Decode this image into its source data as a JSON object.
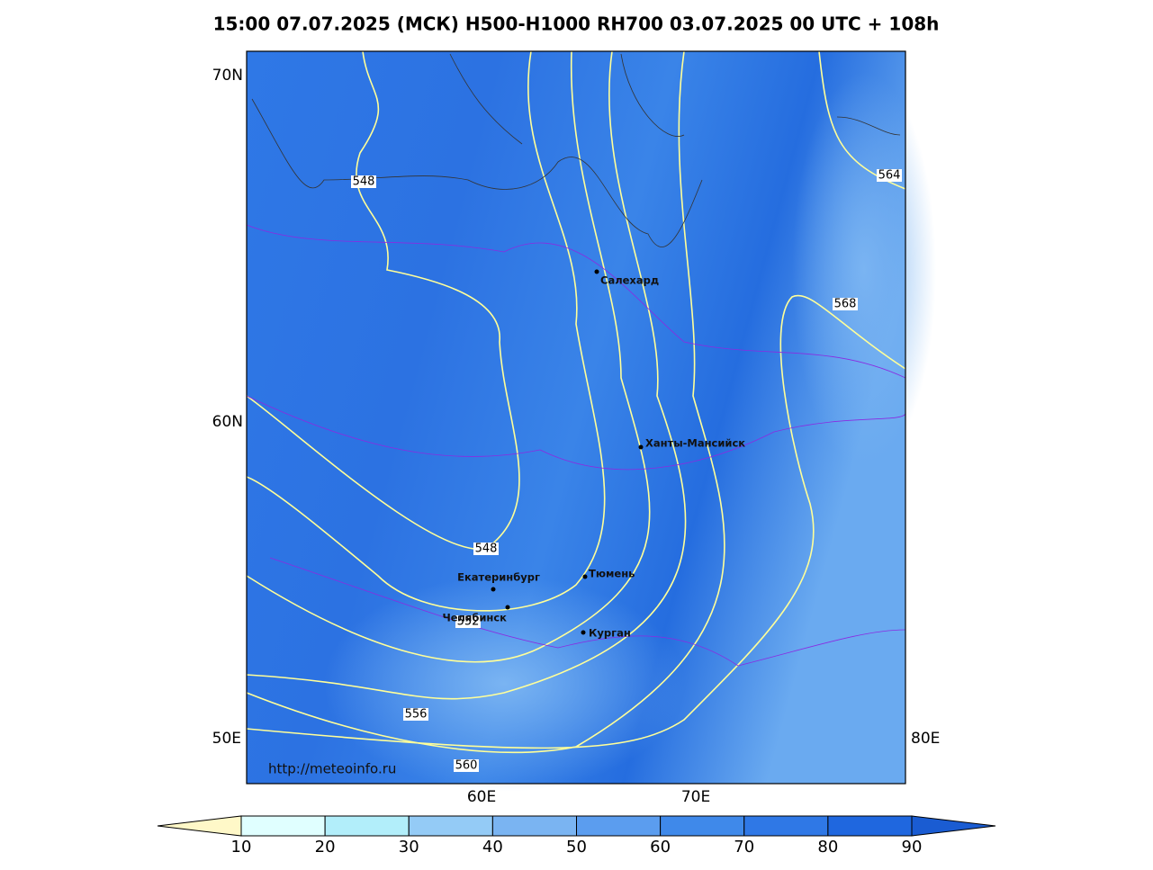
{
  "title": "15:00 07.07.2025 (МСК) H500-H1000 RH700 03.07.2025 00 UTC + 108h",
  "lat_labels": [
    "70N",
    "60N"
  ],
  "lon_labels_left": [
    "50E"
  ],
  "lon_labels_right": [
    "80E"
  ],
  "lon_labels_bottom": [
    "60E",
    "70E"
  ],
  "contour_labels": [
    548,
    564,
    568,
    548,
    552,
    556,
    560
  ],
  "cities": [
    "Салехард",
    "Ханты-Мансийск",
    "Екатеринбург",
    "Тюмень",
    "Челябинск",
    "Курган"
  ],
  "url": "http://meteoinfo.ru",
  "colorbar": {
    "ticks": [
      10,
      20,
      30,
      40,
      50,
      60,
      70,
      80,
      90
    ],
    "under_color": "#fff8c8",
    "over_color": "#1a5cd2",
    "colors": [
      "#e0ffff",
      "#b2eefa",
      "#94cbf6",
      "#7ab4f2",
      "#5b9def",
      "#3f89ea",
      "#2f78e6",
      "#1f67df"
    ]
  }
}
